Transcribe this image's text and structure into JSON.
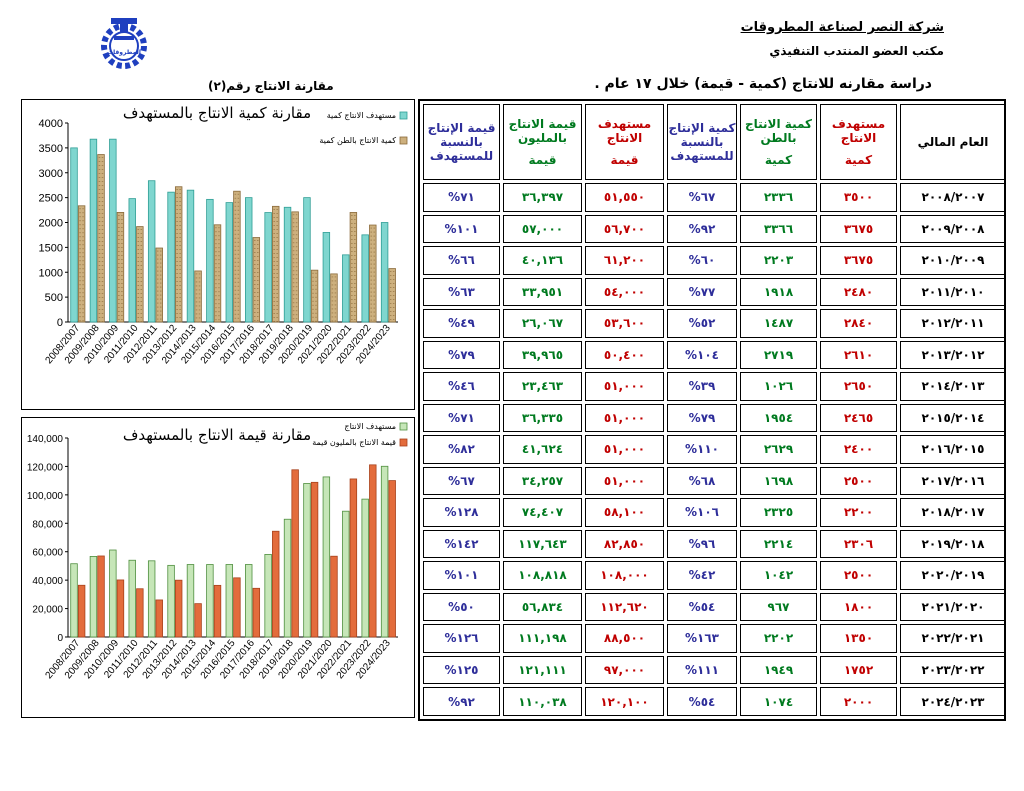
{
  "header": {
    "company": "شركة النصر لصناعة المطروقات",
    "office": "مكتب العضو المنتدب التنفيذي",
    "study_title": "دراسة مقارنه للانتاج (كمية - قيمة) خلال ١٧ عام .",
    "chart_label": "مقارنة الانتاج رقم(٢)",
    "logo_text": "المطروقات"
  },
  "colors": {
    "target": "#c00000",
    "actual": "#007a1f",
    "percent": "#2e2e9a",
    "teal_bar": "#7fd6cf",
    "tan_bar": "#cdb07e",
    "green_bar": "#c6e6b8",
    "orange_bar": "#e36c3c",
    "logo": "#1f3fbf"
  },
  "table": {
    "headers": {
      "year": "العام المالي",
      "target_qty_top": "مستهدف الانتاج",
      "target_qty_sub": "كمية",
      "actual_qty_top": "كمية الانتاج بالطن",
      "actual_qty_sub": "كمية",
      "qty_pct": "كمية الإنتاج بالنسبة للمستهدف",
      "target_val_top": "مستهدف الانتاج",
      "target_val_sub": "قيمة",
      "actual_val_top": "قيمة الانتاج بالمليون",
      "actual_val_sub": "قيمة",
      "val_pct": "قيمة الإنتاج بالنسبة للمستهدف"
    },
    "rows": [
      {
        "year": "٢٠٠٨/٢٠٠٧",
        "tq": "٣٥٠٠",
        "aq": "٢٣٣٦",
        "qp": "%٦٧",
        "tv": "٥١,٥٥٠",
        "av": "٣٦,٣٩٧",
        "vp": "%٧١"
      },
      {
        "year": "٢٠٠٩/٢٠٠٨",
        "tq": "٣٦٧٥",
        "aq": "٣٣٦٦",
        "qp": "%٩٢",
        "tv": "٥٦,٧٠٠",
        "av": "٥٧,٠٠٠",
        "vp": "%١٠١"
      },
      {
        "year": "٢٠١٠/٢٠٠٩",
        "tq": "٣٦٧٥",
        "aq": "٢٢٠٣",
        "qp": "%٦٠",
        "tv": "٦١,٢٠٠",
        "av": "٤٠,١٣٦",
        "vp": "%٦٦"
      },
      {
        "year": "٢٠١١/٢٠١٠",
        "tq": "٢٤٨٠",
        "aq": "١٩١٨",
        "qp": "%٧٧",
        "tv": "٥٤,٠٠٠",
        "av": "٣٣,٩٥١",
        "vp": "%٦٣"
      },
      {
        "year": "٢٠١٢/٢٠١١",
        "tq": "٢٨٤٠",
        "aq": "١٤٨٧",
        "qp": "%٥٢",
        "tv": "٥٣,٦٠٠",
        "av": "٢٦,٠٦٧",
        "vp": "%٤٩"
      },
      {
        "year": "٢٠١٣/٢٠١٢",
        "tq": "٢٦١٠",
        "aq": "٢٧١٩",
        "qp": "%١٠٤",
        "tv": "٥٠,٤٠٠",
        "av": "٣٩,٩٦٥",
        "vp": "%٧٩"
      },
      {
        "year": "٢٠١٤/٢٠١٣",
        "tq": "٢٦٥٠",
        "aq": "١٠٢٦",
        "qp": "%٣٩",
        "tv": "٥١,٠٠٠",
        "av": "٢٣,٤٦٣",
        "vp": "%٤٦"
      },
      {
        "year": "٢٠١٥/٢٠١٤",
        "tq": "٢٤٦٥",
        "aq": "١٩٥٤",
        "qp": "%٧٩",
        "tv": "٥١,٠٠٠",
        "av": "٣٦,٣٣٥",
        "vp": "%٧١"
      },
      {
        "year": "٢٠١٦/٢٠١٥",
        "tq": "٢٤٠٠",
        "aq": "٢٦٢٩",
        "qp": "%١١٠",
        "tv": "٥١,٠٠٠",
        "av": "٤١,٦٢٤",
        "vp": "%٨٢"
      },
      {
        "year": "٢٠١٧/٢٠١٦",
        "tq": "٢٥٠٠",
        "aq": "١٦٩٨",
        "qp": "%٦٨",
        "tv": "٥١,٠٠٠",
        "av": "٣٤,٢٥٧",
        "vp": "%٦٧"
      },
      {
        "year": "٢٠١٨/٢٠١٧",
        "tq": "٢٢٠٠",
        "aq": "٢٣٢٥",
        "qp": "%١٠٦",
        "tv": "٥٨,١٠٠",
        "av": "٧٤,٤٠٧",
        "vp": "%١٢٨"
      },
      {
        "year": "٢٠١٩/٢٠١٨",
        "tq": "٢٣٠٦",
        "aq": "٢٢١٤",
        "qp": "%٩٦",
        "tv": "٨٢,٨٥٠",
        "av": "١١٧,٦٤٣",
        "vp": "%١٤٢"
      },
      {
        "year": "٢٠٢٠/٢٠١٩",
        "tq": "٢٥٠٠",
        "aq": "١٠٤٢",
        "qp": "%٤٢",
        "tv": "١٠٨,٠٠٠",
        "av": "١٠٨,٨١٨",
        "vp": "%١٠١"
      },
      {
        "year": "٢٠٢١/٢٠٢٠",
        "tq": "١٨٠٠",
        "aq": "٩٦٧",
        "qp": "%٥٤",
        "tv": "١١٢,٦٢٠",
        "av": "٥٦,٨٣٤",
        "vp": "%٥٠"
      },
      {
        "year": "٢٠٢٢/٢٠٢١",
        "tq": "١٣٥٠",
        "aq": "٢٢٠٢",
        "qp": "%١٦٣",
        "tv": "٨٨,٥٠٠",
        "av": "١١١,١٩٨",
        "vp": "%١٢٦"
      },
      {
        "year": "٢٠٢٣/٢٠٢٢",
        "tq": "١٧٥٢",
        "aq": "١٩٤٩",
        "qp": "%١١١",
        "tv": "٩٧,٠٠٠",
        "av": "١٢١,١١١",
        "vp": "%١٢٥"
      },
      {
        "year": "٢٠٢٤/٢٠٢٣",
        "tq": "٢٠٠٠",
        "aq": "١٠٧٤",
        "qp": "%٥٤",
        "tv": "١٢٠,١٠٠",
        "av": "١١٠,٠٣٨",
        "vp": "%٩٢"
      }
    ]
  },
  "chart_data": [
    {
      "type": "bar",
      "title": "مقارنة كمية الانتاج بالمستهدف",
      "categories": [
        "2008/2007",
        "2009/2008",
        "2010/2009",
        "2011/2010",
        "2012/2011",
        "2013/2012",
        "2014/2013",
        "2015/2014",
        "2016/2015",
        "2017/2016",
        "2018/2017",
        "2019/2018",
        "2020/2019",
        "2021/2020",
        "2022/2021",
        "2023/2022",
        "2024/2023"
      ],
      "series": [
        {
          "name": "مستهدف الانتاج كمية",
          "values": [
            3500,
            3675,
            3675,
            2480,
            2840,
            2610,
            2650,
            2465,
            2400,
            2500,
            2200,
            2306,
            2500,
            1800,
            1350,
            1752,
            2000
          ]
        },
        {
          "name": "كمية الانتاج بالطن كمية",
          "values": [
            2336,
            3366,
            2203,
            1918,
            1487,
            2719,
            1026,
            1954,
            2629,
            1698,
            2325,
            2214,
            1042,
            967,
            2202,
            1949,
            1074
          ]
        }
      ],
      "ylim": [
        0,
        4000
      ],
      "yticks": [
        "0",
        "500",
        "1000",
        "1500",
        "2000",
        "2500",
        "3000",
        "3500",
        "4000"
      ],
      "legend": "top-right",
      "grid": false
    },
    {
      "type": "bar",
      "title": "مقارنة قيمة الانتاج بالمستهدف",
      "categories": [
        "2008/2007",
        "2009/2008",
        "2010/2009",
        "2011/2010",
        "2012/2011",
        "2013/2012",
        "2014/2013",
        "2015/2014",
        "2016/2015",
        "2017/2016",
        "2018/2017",
        "2019/2018",
        "2020/2019",
        "2021/2020",
        "2022/2021",
        "2023/2022",
        "2024/2023"
      ],
      "series": [
        {
          "name": "مستهدف الانتاج",
          "values": [
            51550,
            56700,
            61200,
            54000,
            53600,
            50400,
            51000,
            51000,
            51000,
            51000,
            58100,
            82850,
            108000,
            112620,
            88500,
            97000,
            120100
          ]
        },
        {
          "name": "قيمة الانتاج بالمليون قيمة",
          "values": [
            36397,
            57000,
            40136,
            33951,
            26067,
            39965,
            23463,
            36335,
            41624,
            34257,
            74407,
            117643,
            108818,
            56834,
            111198,
            121111,
            110038
          ]
        }
      ],
      "ylim": [
        0,
        140000
      ],
      "yticks": [
        "0",
        "20,000",
        "40,000",
        "60,000",
        "80,000",
        "100,000",
        "120,000",
        "140,000"
      ],
      "legend": "top-right",
      "grid": false
    }
  ]
}
